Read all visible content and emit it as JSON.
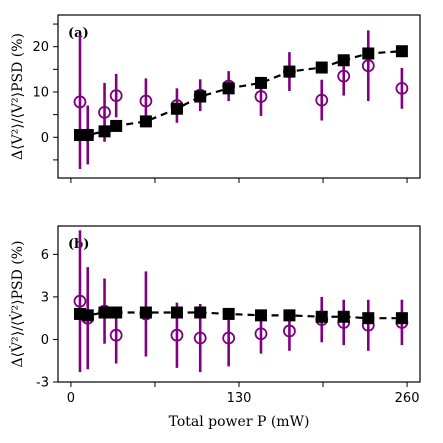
{
  "chart_data": [
    {
      "type": "scatter",
      "panel_label": "(a)",
      "ylabel": "Δ⟨V²⟩/⟨V²⟩PSD (%)",
      "xlim": [
        -10,
        270
      ],
      "ylim": [
        -9,
        27
      ],
      "yticks": [
        -5,
        0,
        5,
        10,
        15,
        20,
        25
      ],
      "ytick_labels": [
        "",
        "0",
        "",
        "10",
        "",
        "20",
        ""
      ],
      "xticks": [
        0,
        65,
        130,
        195,
        260
      ],
      "series": [
        {
          "marker": "filled-square",
          "color": "#000000",
          "dashed_fit_line": true,
          "x": [
            7,
            13,
            26,
            35,
            58,
            82,
            100,
            122,
            147,
            169,
            194,
            211,
            230,
            256
          ],
          "y": [
            0.5,
            0.5,
            1.3,
            2.5,
            3.5,
            6.3,
            9.0,
            10.8,
            12.0,
            14.5,
            15.4,
            17.0,
            18.5,
            19.0
          ],
          "err": [
            0,
            0,
            0,
            0,
            0,
            0,
            0,
            0,
            0,
            0,
            0,
            0,
            0,
            0
          ]
        },
        {
          "marker": "open-circle",
          "color": "#800080",
          "x": [
            7,
            13,
            26,
            35,
            58,
            82,
            100,
            122,
            147,
            169,
            194,
            211,
            230,
            256
          ],
          "y": [
            7.8,
            0.5,
            5.5,
            9.2,
            8.0,
            7.0,
            9.3,
            11.3,
            9.0,
            14.5,
            8.2,
            13.5,
            15.8,
            10.8
          ],
          "err": [
            14.8,
            6.5,
            6.5,
            4.8,
            5.0,
            3.8,
            3.5,
            3.3,
            4.3,
            4.3,
            4.5,
            4.3,
            7.8,
            4.5
          ]
        }
      ]
    },
    {
      "type": "scatter",
      "panel_label": "(b)",
      "ylabel": "Δ⟨V̇²⟩/⟨V̇²⟩PSD (%)",
      "xlabel": "Total power P (mW)",
      "xlim": [
        -10,
        270
      ],
      "ylim": [
        -3,
        8
      ],
      "yticks": [
        -3,
        0,
        3,
        6
      ],
      "ytick_labels": [
        "-3",
        "0",
        "3",
        "6"
      ],
      "xticks": [
        0,
        65,
        130,
        195,
        260
      ],
      "xtick_labels": [
        "0",
        "",
        "130",
        "",
        "260"
      ],
      "series": [
        {
          "marker": "filled-square",
          "color": "#000000",
          "dashed_fit_line": true,
          "x": [
            7,
            13,
            26,
            35,
            58,
            82,
            100,
            122,
            147,
            169,
            194,
            211,
            230,
            256
          ],
          "y": [
            1.8,
            1.7,
            1.9,
            1.9,
            1.9,
            1.9,
            1.9,
            1.8,
            1.7,
            1.7,
            1.6,
            1.6,
            1.5,
            1.5
          ],
          "err": [
            0,
            0,
            0,
            0,
            0,
            0,
            0,
            0,
            0,
            0,
            0,
            0,
            0,
            0
          ]
        },
        {
          "marker": "open-circle",
          "color": "#800080",
          "x": [
            7,
            13,
            26,
            35,
            58,
            82,
            100,
            122,
            147,
            169,
            194,
            211,
            230,
            256
          ],
          "y": [
            2.7,
            1.5,
            2.0,
            0.3,
            1.8,
            0.3,
            0.1,
            0.1,
            0.4,
            0.6,
            1.4,
            1.2,
            1.0,
            1.2
          ],
          "err": [
            5.0,
            3.6,
            2.3,
            2.0,
            3.0,
            2.3,
            2.4,
            2.0,
            1.4,
            1.4,
            1.6,
            1.6,
            1.8,
            1.6
          ]
        }
      ]
    }
  ]
}
